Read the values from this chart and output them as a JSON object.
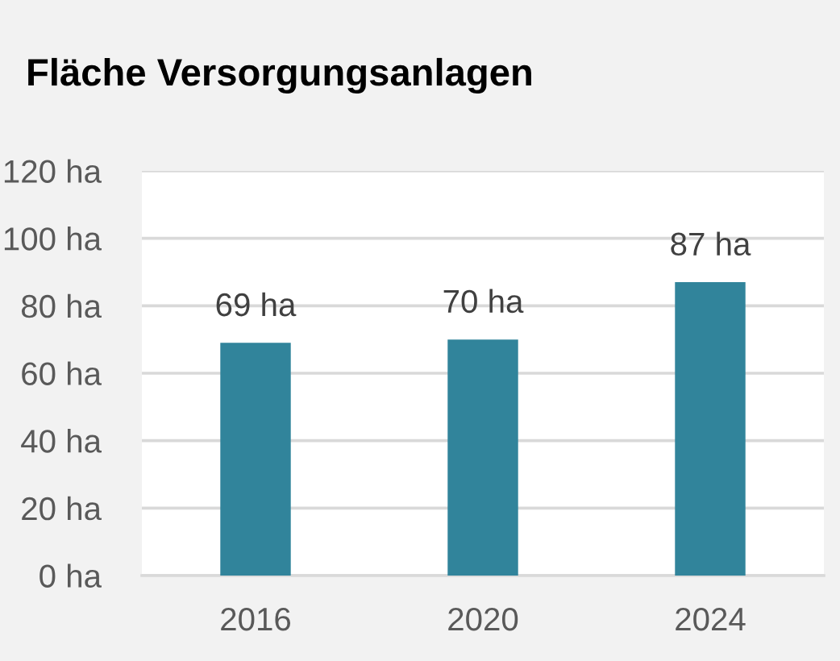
{
  "chart_data": {
    "type": "bar",
    "title": "Fläche Versorgungsanlagen",
    "categories": [
      "2016",
      "2020",
      "2024"
    ],
    "values": [
      69,
      70,
      87
    ],
    "color": "#31849b",
    "value_labels": [
      "69 ha",
      "70 ha",
      "87 ha"
    ],
    "ylim": [
      0,
      120
    ],
    "yticks": [
      {
        "value": 0,
        "label": "0 ha"
      },
      {
        "value": 20,
        "label": "20 ha"
      },
      {
        "value": 40,
        "label": "40 ha"
      },
      {
        "value": 60,
        "label": "60 ha"
      },
      {
        "value": 80,
        "label": "80 ha"
      },
      {
        "value": 100,
        "label": "100 ha"
      },
      {
        "value": 120,
        "label": "120 ha"
      }
    ],
    "grid": "y"
  }
}
